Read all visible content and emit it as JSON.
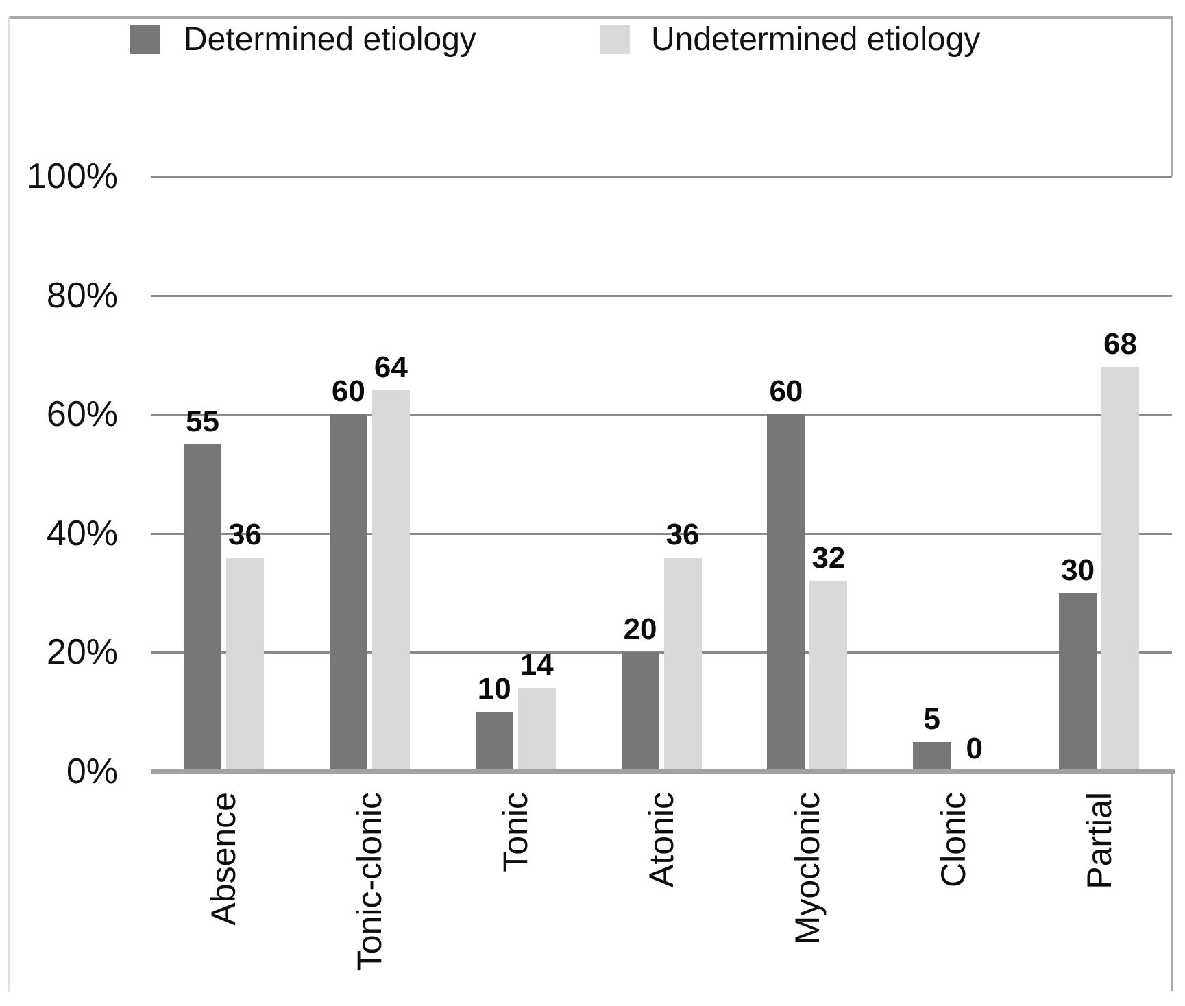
{
  "chart_data": {
    "type": "bar",
    "title": "",
    "categories": [
      "Absence",
      "Tonic-clonic",
      "Tonic",
      "Atonic",
      "Myoclonic",
      "Clonic",
      "Partial"
    ],
    "series": [
      {
        "name": "Determined etiology",
        "color": "#777777",
        "values": [
          55,
          60,
          10,
          20,
          60,
          5,
          30
        ]
      },
      {
        "name": "Undetermined etiology",
        "color": "#d9d9d9",
        "values": [
          36,
          64,
          14,
          36,
          32,
          0,
          68
        ]
      }
    ],
    "y_axis": {
      "ticks": [
        "0%",
        "20%",
        "40%",
        "60%",
        "80%",
        "100%"
      ],
      "tick_values": [
        0,
        20,
        40,
        60,
        80,
        100
      ],
      "min": 0,
      "max": 100,
      "grid": true
    },
    "legend_position": "top",
    "value_labels": "outside-end",
    "grid_color": "#8a8a8a",
    "axis_color": "#a2a2a2",
    "text_color": "#111111"
  }
}
